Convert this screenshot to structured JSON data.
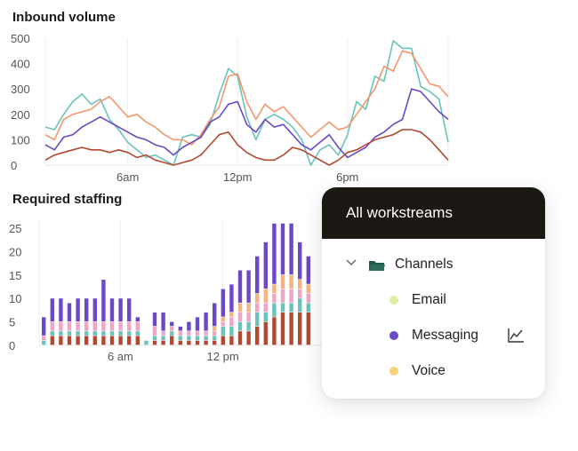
{
  "charts": {
    "inbound": {
      "title": "Inbound volume"
    },
    "staffing": {
      "title": "Required staffing"
    }
  },
  "chart_data": [
    {
      "type": "line",
      "title": "Inbound volume",
      "xlabel": "",
      "ylabel": "",
      "ylim": [
        0,
        500
      ],
      "yticks": [
        0,
        100,
        200,
        300,
        400,
        500
      ],
      "x_tick_labels": [
        "6am",
        "12pm",
        "6pm"
      ],
      "x_tick_positions": [
        12,
        24,
        36
      ],
      "x": [
        3,
        4,
        5,
        6,
        7,
        8,
        9,
        10,
        11,
        12,
        13,
        14,
        15,
        16,
        17,
        18,
        19,
        20,
        21,
        22,
        23,
        24,
        25,
        26,
        27,
        28,
        29,
        30,
        31,
        32,
        33,
        34,
        35,
        36,
        37,
        38,
        39,
        40,
        41,
        42,
        43,
        44,
        45,
        46,
        47
      ],
      "grid": true,
      "series": [
        {
          "color": "#6ac3bb",
          "values": [
            150,
            140,
            200,
            250,
            280,
            240,
            260,
            180,
            140,
            90,
            60,
            30,
            40,
            20,
            0,
            110,
            120,
            110,
            160,
            280,
            380,
            350,
            190,
            100,
            180,
            200,
            180,
            150,
            100,
            0,
            60,
            80,
            40,
            120,
            250,
            220,
            350,
            330,
            490,
            460,
            460,
            310,
            290,
            260,
            90
          ]
        },
        {
          "color": "#f4976c",
          "values": [
            120,
            100,
            180,
            200,
            210,
            220,
            250,
            270,
            230,
            190,
            200,
            170,
            150,
            120,
            100,
            100,
            80,
            120,
            180,
            230,
            350,
            360,
            250,
            180,
            240,
            210,
            230,
            190,
            150,
            110,
            140,
            170,
            140,
            150,
            200,
            250,
            300,
            390,
            370,
            450,
            440,
            380,
            320,
            310,
            270
          ]
        },
        {
          "color": "#6a48c6",
          "values": [
            80,
            60,
            110,
            120,
            150,
            170,
            190,
            170,
            150,
            130,
            110,
            100,
            80,
            70,
            40,
            70,
            90,
            110,
            170,
            190,
            240,
            250,
            160,
            130,
            180,
            150,
            160,
            120,
            80,
            60,
            90,
            120,
            70,
            30,
            50,
            70,
            110,
            130,
            160,
            180,
            300,
            290,
            250,
            210,
            180
          ]
        },
        {
          "color": "#b14933",
          "values": [
            20,
            40,
            50,
            60,
            70,
            60,
            60,
            50,
            60,
            50,
            30,
            40,
            20,
            10,
            0,
            10,
            20,
            40,
            80,
            120,
            130,
            80,
            50,
            30,
            20,
            20,
            40,
            70,
            60,
            40,
            20,
            0,
            20,
            50,
            60,
            80,
            100,
            110,
            120,
            140,
            140,
            130,
            100,
            60,
            20
          ]
        }
      ]
    },
    {
      "type": "bar",
      "stacked": true,
      "title": "Required staffing",
      "xlabel": "",
      "ylabel": "",
      "ylim": [
        0,
        25
      ],
      "yticks": [
        0,
        5,
        10,
        15,
        20,
        25
      ],
      "x_tick_labels": [
        "6 am",
        "12 pm"
      ],
      "x_tick_positions": [
        12,
        24
      ],
      "x": [
        3,
        4,
        5,
        6,
        7,
        8,
        9,
        10,
        11,
        12,
        13,
        14,
        15,
        16,
        17,
        18,
        19,
        20,
        21,
        22,
        23,
        24,
        25,
        26,
        27,
        28,
        29,
        30,
        31,
        32,
        33,
        34
      ],
      "grid": true,
      "series": [
        {
          "name": "",
          "color": "#b14933",
          "values": [
            0,
            2,
            2,
            2,
            2,
            2,
            2,
            2,
            2,
            2,
            2,
            2,
            0,
            1,
            1,
            2,
            1,
            1,
            1,
            1,
            1,
            2,
            2,
            3,
            3,
            4,
            5,
            6,
            7,
            7,
            7,
            7
          ]
        },
        {
          "name": "",
          "color": "#6ac3bb",
          "values": [
            1,
            1,
            1,
            1,
            1,
            1,
            1,
            1,
            1,
            1,
            1,
            1,
            1,
            1,
            1,
            1,
            1,
            1,
            1,
            1,
            1,
            2,
            2,
            2,
            2,
            3,
            2,
            3,
            2,
            2,
            3,
            2
          ]
        },
        {
          "name": "",
          "color": "#f0a5c7",
          "values": [
            1,
            2,
            2,
            2,
            2,
            2,
            2,
            2,
            2,
            2,
            2,
            2,
            0,
            2,
            1,
            1,
            1,
            1,
            1,
            1,
            1,
            1,
            2,
            2,
            2,
            2,
            2,
            2,
            3,
            3,
            2,
            2
          ]
        },
        {
          "name": "",
          "color": "#f7b27f",
          "values": [
            0,
            0,
            0,
            0,
            0,
            0,
            0,
            0,
            0,
            0,
            0,
            0,
            0,
            0,
            0,
            0,
            0,
            0,
            0,
            0,
            1,
            1,
            1,
            2,
            2,
            2,
            3,
            2,
            3,
            3,
            2,
            2
          ]
        },
        {
          "name": "",
          "color": "#6a48c6",
          "values": [
            4,
            5,
            5,
            4,
            5,
            5,
            5,
            9,
            5,
            5,
            5,
            1,
            0,
            3,
            4,
            1,
            1,
            2,
            3,
            4,
            5,
            6,
            6,
            7,
            7,
            8,
            10,
            13,
            11,
            11,
            8,
            6
          ]
        }
      ]
    }
  ],
  "panel": {
    "title": "All workstreams",
    "folder_label": "Channels",
    "items": [
      {
        "label": "Email",
        "color": "#dcefa4"
      },
      {
        "label": "Messaging",
        "color": "#6a48c6"
      },
      {
        "label": "Voice",
        "color": "#f7d27a"
      }
    ],
    "icons": {
      "expand": "chevron-down-icon",
      "folder": "folder-icon",
      "chart": "line-chart-icon"
    }
  }
}
